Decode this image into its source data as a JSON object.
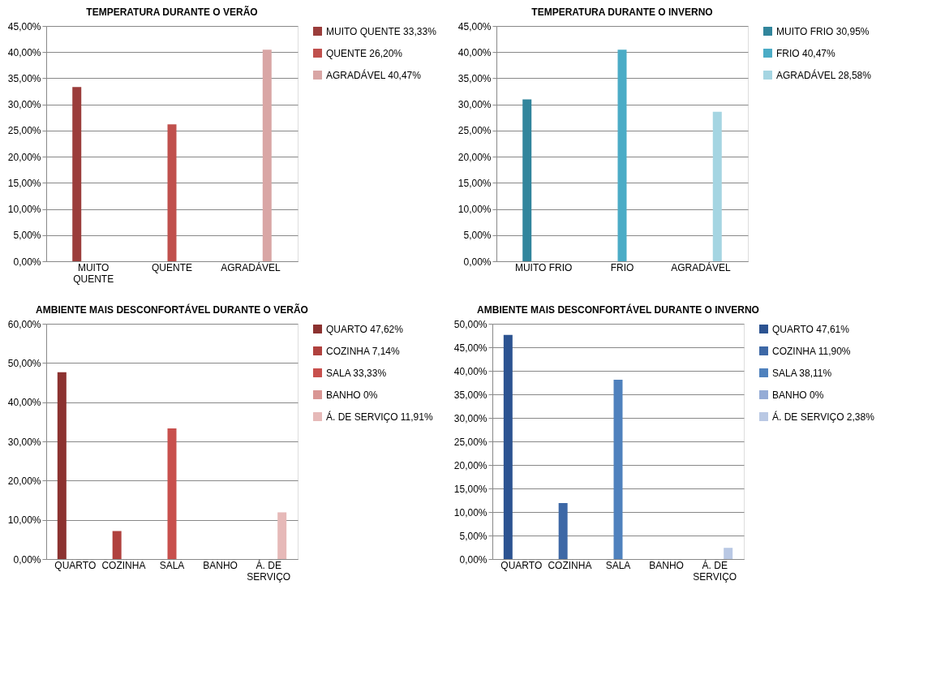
{
  "chart_data": [
    {
      "type": "bar",
      "title": "TEMPERATURA  DURANTE O VERÃO",
      "categories": [
        "MUITO QUENTE",
        "QUENTE",
        "AGRADÁVEL"
      ],
      "legend": "right",
      "grid": "y",
      "ylim": [
        0,
        45
      ],
      "yticks": [
        {
          "value": 0,
          "label": "0,00%"
        },
        {
          "value": 5,
          "label": "5,00%"
        },
        {
          "value": 10,
          "label": "10,00%"
        },
        {
          "value": 15,
          "label": "15,00%"
        },
        {
          "value": 20,
          "label": "20,00%"
        },
        {
          "value": 25,
          "label": "25,00%"
        },
        {
          "value": 30,
          "label": "30,00%"
        },
        {
          "value": 35,
          "label": "35,00%"
        },
        {
          "value": 40,
          "label": "40,00%"
        },
        {
          "value": 45,
          "label": "45,00%"
        }
      ],
      "series": [
        {
          "name": "MUITO QUENTE  33,33%",
          "color": "#9b3d3b",
          "values": [
            33.33,
            null,
            null
          ]
        },
        {
          "name": "QUENTE  26,20%",
          "color": "#c0504d",
          "values": [
            null,
            26.2,
            null
          ]
        },
        {
          "name": "AGRADÁVEL  40,47%",
          "color": "#d9a6a5",
          "values": [
            null,
            null,
            40.47
          ]
        }
      ]
    },
    {
      "type": "bar",
      "title": "TEMPERATURA  DURANTE O INVERNO",
      "categories": [
        "MUITO FRIO",
        "FRIO",
        "AGRADÁVEL"
      ],
      "legend": "right",
      "grid": "y",
      "ylim": [
        0,
        45
      ],
      "yticks": [
        {
          "value": 0,
          "label": "0,00%"
        },
        {
          "value": 5,
          "label": "5,00%"
        },
        {
          "value": 10,
          "label": "10,00%"
        },
        {
          "value": 15,
          "label": "15,00%"
        },
        {
          "value": 20,
          "label": "20,00%"
        },
        {
          "value": 25,
          "label": "25,00%"
        },
        {
          "value": 30,
          "label": "30,00%"
        },
        {
          "value": 35,
          "label": "35,00%"
        },
        {
          "value": 40,
          "label": "40,00%"
        },
        {
          "value": 45,
          "label": "45,00%"
        }
      ],
      "series": [
        {
          "name": "MUITO FRIO  30,95%",
          "color": "#31859c",
          "values": [
            30.95,
            null,
            null
          ]
        },
        {
          "name": "FRIO  40,47%",
          "color": "#4bacc6",
          "values": [
            null,
            40.47,
            null
          ]
        },
        {
          "name": "AGRADÁVEL  28,58%",
          "color": "#a5d5e2",
          "values": [
            null,
            null,
            28.58
          ]
        }
      ]
    },
    {
      "type": "bar",
      "title": "AMBIENTE MAIS DESCONFORTÁVEL DURANTE O VERÃO",
      "categories": [
        "QUARTO",
        "COZINHA",
        "SALA",
        "BANHO",
        "Á. DE SERVIÇO"
      ],
      "legend": "right",
      "grid": "y",
      "ylim": [
        0,
        60
      ],
      "yticks": [
        {
          "value": 0,
          "label": "0,00%"
        },
        {
          "value": 10,
          "label": "10,00%"
        },
        {
          "value": 20,
          "label": "20,00%"
        },
        {
          "value": 30,
          "label": "30,00%"
        },
        {
          "value": 40,
          "label": "40,00%"
        },
        {
          "value": 50,
          "label": "50,00%"
        },
        {
          "value": 60,
          "label": "60,00%"
        }
      ],
      "series": [
        {
          "name": "QUARTO 47,62%",
          "color": "#8c3230",
          "values": [
            47.62,
            null,
            null,
            null,
            null
          ]
        },
        {
          "name": "COZINHA  7,14%",
          "color": "#b0413e",
          "values": [
            null,
            7.14,
            null,
            null,
            null
          ]
        },
        {
          "name": "SALA  33,33%",
          "color": "#c8504d",
          "values": [
            null,
            null,
            33.33,
            null,
            null
          ]
        },
        {
          "name": "BANHO  0%",
          "color": "#d99694",
          "values": [
            null,
            null,
            null,
            0,
            null
          ]
        },
        {
          "name": "Á. DE SERVIÇO  11,91%",
          "color": "#e6b9b8",
          "values": [
            null,
            null,
            null,
            null,
            11.91
          ]
        }
      ]
    },
    {
      "type": "bar",
      "title": "AMBIENTE MAIS DESCONFORTÁVEL DURANTE O INVERNO",
      "categories": [
        "QUARTO",
        "COZINHA",
        "SALA",
        "BANHO",
        "Á. DE SERVIÇO"
      ],
      "legend": "right",
      "grid": "y",
      "ylim": [
        0,
        50
      ],
      "yticks": [
        {
          "value": 0,
          "label": "0,00%"
        },
        {
          "value": 5,
          "label": "5,00%"
        },
        {
          "value": 10,
          "label": "10,00%"
        },
        {
          "value": 15,
          "label": "15,00%"
        },
        {
          "value": 20,
          "label": "20,00%"
        },
        {
          "value": 25,
          "label": "25,00%"
        },
        {
          "value": 30,
          "label": "30,00%"
        },
        {
          "value": 35,
          "label": "35,00%"
        },
        {
          "value": 40,
          "label": "40,00%"
        },
        {
          "value": 45,
          "label": "45,00%"
        },
        {
          "value": 50,
          "label": "50,00%"
        }
      ],
      "series": [
        {
          "name": "QUARTO  47,61%",
          "color": "#2c5391",
          "values": [
            47.61,
            null,
            null,
            null,
            null
          ]
        },
        {
          "name": "COZINHA  11,90%",
          "color": "#3d68a6",
          "values": [
            null,
            11.9,
            null,
            null,
            null
          ]
        },
        {
          "name": "SALA  38,11%",
          "color": "#4f81bd",
          "values": [
            null,
            null,
            38.11,
            null,
            null
          ]
        },
        {
          "name": "BANHO  0%",
          "color": "#95acd6",
          "values": [
            null,
            null,
            null,
            0,
            null
          ]
        },
        {
          "name": "Á. DE SERVIÇO  2,38%",
          "color": "#b9c8e4",
          "values": [
            null,
            null,
            null,
            null,
            2.38
          ]
        }
      ]
    }
  ]
}
